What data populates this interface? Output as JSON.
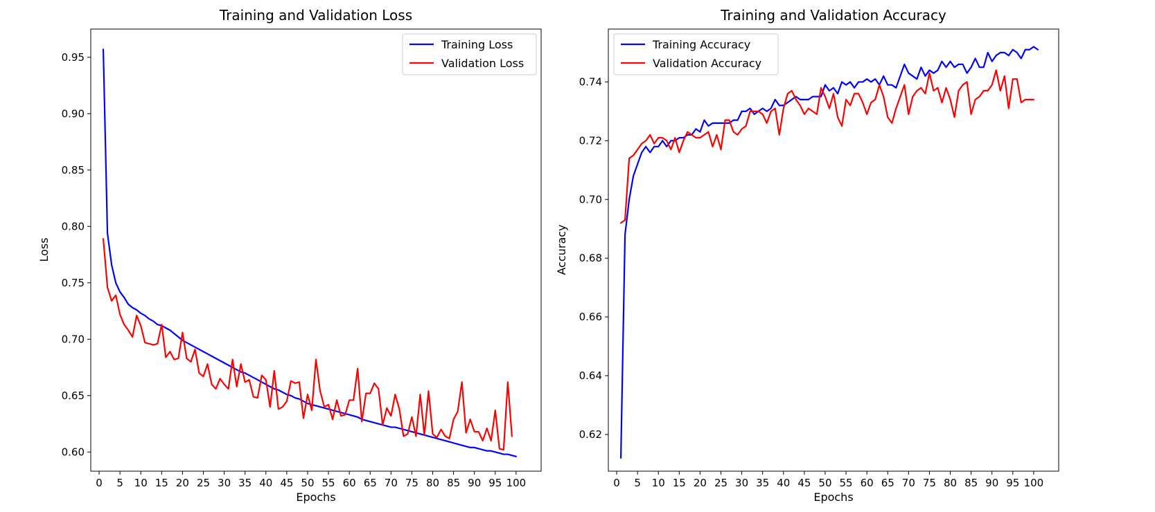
{
  "figure": {
    "background": "#ffffff"
  },
  "chart_data": [
    {
      "type": "line",
      "title": "Training and Validation Loss",
      "xlabel": "Epochs",
      "ylabel": "Loss",
      "xlim": [
        -2,
        106
      ],
      "ylim": [
        0.583,
        0.975
      ],
      "xticks": [
        0,
        5,
        10,
        15,
        20,
        25,
        30,
        35,
        40,
        45,
        50,
        55,
        60,
        65,
        70,
        75,
        80,
        85,
        90,
        95,
        100
      ],
      "yticks": [
        0.6,
        0.65,
        0.7,
        0.75,
        0.8,
        0.85,
        0.9,
        0.95
      ],
      "ytick_decimals": 2,
      "grid": false,
      "legend": "upper-right",
      "series": [
        {
          "name": "Training Loss",
          "color": "#0000ff",
          "values": [
            0.957,
            0.794,
            0.766,
            0.75,
            0.742,
            0.737,
            0.731,
            0.728,
            0.726,
            0.723,
            0.721,
            0.718,
            0.716,
            0.713,
            0.712,
            0.71,
            0.708,
            0.705,
            0.702,
            0.699,
            0.697,
            0.695,
            0.693,
            0.691,
            0.689,
            0.687,
            0.685,
            0.683,
            0.681,
            0.679,
            0.677,
            0.675,
            0.673,
            0.671,
            0.67,
            0.668,
            0.666,
            0.664,
            0.662,
            0.66,
            0.658,
            0.656,
            0.655,
            0.653,
            0.651,
            0.65,
            0.648,
            0.647,
            0.645,
            0.643,
            0.642,
            0.641,
            0.64,
            0.639,
            0.638,
            0.637,
            0.636,
            0.635,
            0.634,
            0.633,
            0.632,
            0.631,
            0.629,
            0.628,
            0.627,
            0.626,
            0.625,
            0.624,
            0.623,
            0.622,
            0.622,
            0.621,
            0.62,
            0.619,
            0.618,
            0.617,
            0.616,
            0.615,
            0.614,
            0.613,
            0.612,
            0.611,
            0.61,
            0.609,
            0.608,
            0.607,
            0.606,
            0.605,
            0.604,
            0.604,
            0.603,
            0.602,
            0.601,
            0.601,
            0.6,
            0.599,
            0.598,
            0.598,
            0.597,
            0.596
          ]
        },
        {
          "name": "Validation Loss",
          "color": "#ff0000",
          "values": [
            0.789,
            0.746,
            0.734,
            0.739,
            0.722,
            0.713,
            0.708,
            0.702,
            0.721,
            0.712,
            0.697,
            0.696,
            0.695,
            0.696,
            0.713,
            0.684,
            0.689,
            0.682,
            0.683,
            0.706,
            0.683,
            0.68,
            0.691,
            0.67,
            0.667,
            0.678,
            0.66,
            0.656,
            0.665,
            0.66,
            0.656,
            0.682,
            0.658,
            0.678,
            0.662,
            0.664,
            0.649,
            0.648,
            0.668,
            0.664,
            0.64,
            0.672,
            0.638,
            0.64,
            0.645,
            0.663,
            0.661,
            0.662,
            0.63,
            0.651,
            0.637,
            0.682,
            0.654,
            0.64,
            0.642,
            0.629,
            0.646,
            0.632,
            0.633,
            0.646,
            0.646,
            0.674,
            0.627,
            0.652,
            0.652,
            0.661,
            0.656,
            0.624,
            0.639,
            0.632,
            0.651,
            0.638,
            0.614,
            0.616,
            0.631,
            0.614,
            0.651,
            0.615,
            0.654,
            0.616,
            0.613,
            0.62,
            0.614,
            0.612,
            0.629,
            0.636,
            0.662,
            0.617,
            0.629,
            0.618,
            0.618,
            0.61,
            0.621,
            0.61,
            0.637,
            0.603,
            0.602,
            0.662,
            0.614
          ]
        }
      ]
    },
    {
      "type": "line",
      "title": "Training and Validation Accuracy",
      "xlabel": "Epochs",
      "ylabel": "Accuracy",
      "xlim": [
        -2,
        106
      ],
      "ylim": [
        0.6075,
        0.758
      ],
      "xticks": [
        0,
        5,
        10,
        15,
        20,
        25,
        30,
        35,
        40,
        45,
        50,
        55,
        60,
        65,
        70,
        75,
        80,
        85,
        90,
        95,
        100
      ],
      "yticks": [
        0.62,
        0.64,
        0.66,
        0.68,
        0.7,
        0.72,
        0.74
      ],
      "ytick_decimals": 2,
      "grid": false,
      "legend": "upper-left",
      "series": [
        {
          "name": "Training Accuracy",
          "color": "#0000ff",
          "values": [
            0.612,
            0.688,
            0.7,
            0.708,
            0.712,
            0.716,
            0.718,
            0.716,
            0.718,
            0.718,
            0.72,
            0.718,
            0.72,
            0.72,
            0.721,
            0.721,
            0.722,
            0.722,
            0.724,
            0.723,
            0.727,
            0.725,
            0.726,
            0.726,
            0.726,
            0.726,
            0.726,
            0.727,
            0.727,
            0.73,
            0.73,
            0.731,
            0.729,
            0.73,
            0.731,
            0.73,
            0.731,
            0.734,
            0.732,
            0.732,
            0.733,
            0.734,
            0.735,
            0.734,
            0.734,
            0.734,
            0.735,
            0.735,
            0.735,
            0.739,
            0.737,
            0.738,
            0.736,
            0.74,
            0.739,
            0.74,
            0.738,
            0.74,
            0.74,
            0.741,
            0.74,
            0.741,
            0.739,
            0.742,
            0.739,
            0.739,
            0.738,
            0.742,
            0.746,
            0.743,
            0.742,
            0.741,
            0.745,
            0.742,
            0.744,
            0.743,
            0.744,
            0.747,
            0.745,
            0.747,
            0.745,
            0.746,
            0.746,
            0.743,
            0.745,
            0.748,
            0.745,
            0.745,
            0.75,
            0.747,
            0.749,
            0.75,
            0.75,
            0.749,
            0.751,
            0.75,
            0.748,
            0.751,
            0.751,
            0.752,
            0.751
          ]
        },
        {
          "name": "Validation Accuracy",
          "color": "#ff0000",
          "values": [
            0.692,
            0.693,
            0.714,
            0.715,
            0.717,
            0.719,
            0.72,
            0.722,
            0.719,
            0.721,
            0.721,
            0.72,
            0.717,
            0.721,
            0.716,
            0.72,
            0.723,
            0.722,
            0.721,
            0.721,
            0.722,
            0.723,
            0.718,
            0.722,
            0.717,
            0.727,
            0.727,
            0.723,
            0.722,
            0.724,
            0.725,
            0.73,
            0.73,
            0.73,
            0.729,
            0.726,
            0.73,
            0.731,
            0.722,
            0.731,
            0.736,
            0.737,
            0.734,
            0.732,
            0.729,
            0.731,
            0.73,
            0.729,
            0.738,
            0.735,
            0.731,
            0.736,
            0.728,
            0.725,
            0.734,
            0.732,
            0.736,
            0.736,
            0.733,
            0.729,
            0.733,
            0.734,
            0.739,
            0.735,
            0.728,
            0.726,
            0.731,
            0.735,
            0.739,
            0.729,
            0.735,
            0.737,
            0.738,
            0.736,
            0.743,
            0.737,
            0.738,
            0.733,
            0.738,
            0.734,
            0.728,
            0.737,
            0.739,
            0.74,
            0.729,
            0.734,
            0.735,
            0.737,
            0.737,
            0.739,
            0.744,
            0.737,
            0.742,
            0.731,
            0.741,
            0.741,
            0.733,
            0.734,
            0.734,
            0.734
          ]
        }
      ]
    }
  ]
}
